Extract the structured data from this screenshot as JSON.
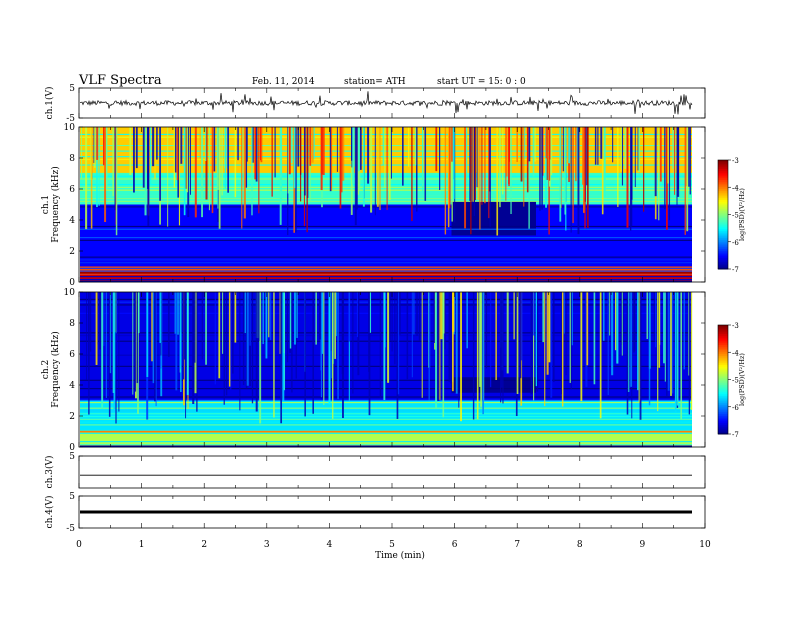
{
  "header": {
    "title": "VLF  Spectra",
    "date": "Feb. 11, 2014",
    "station": "station= ATH",
    "start": "start  UT  =    15: 0  : 0"
  },
  "chart_data": [
    {
      "type": "line",
      "panel": "ch1-waveform",
      "ylabel": "ch.1(V)",
      "ylim": [
        -5,
        5
      ],
      "yticks": [
        5,
        -5
      ],
      "xlim": [
        0,
        10
      ],
      "description_value": "noisy trace near 0 V with spikes"
    },
    {
      "type": "heatmap",
      "panel": "ch1-spectrogram",
      "ylabel_channel": "ch.1",
      "ylabel": "Frequency  (kHz)",
      "ylim": [
        0,
        10
      ],
      "yticks": [
        0,
        2,
        4,
        6,
        8,
        10
      ],
      "xlim": [
        0,
        9.8
      ],
      "colorbar": {
        "label": "log(PSD)(V²/Hz)",
        "range": [
          -7,
          -3
        ],
        "ticks": [
          -3,
          -4,
          -5,
          -6,
          -7
        ]
      },
      "bands_khz": [
        {
          "from": 0,
          "to": 0.5,
          "level": -3.3
        },
        {
          "from": 0.5,
          "to": 1.0,
          "level": -3.8
        },
        {
          "from": 1.0,
          "to": 5.0,
          "level": -6.5
        },
        {
          "from": 5.0,
          "to": 7.0,
          "level": -5.3
        },
        {
          "from": 7.0,
          "to": 10.0,
          "level": -4.3
        }
      ],
      "quiet_window_min": [
        5.95,
        7.3
      ]
    },
    {
      "type": "heatmap",
      "panel": "ch2-spectrogram",
      "ylabel_channel": "ch.2",
      "ylabel": "Frequency  (kHz)",
      "ylim": [
        0,
        10
      ],
      "yticks": [
        0,
        2,
        4,
        6,
        8,
        10
      ],
      "xlim": [
        0,
        9.8
      ],
      "colorbar": {
        "label": "log(PSD)(V²/Hz)",
        "range": [
          -7,
          -3
        ],
        "ticks": [
          -3,
          -4,
          -5,
          -6,
          -7
        ]
      },
      "bands_khz": [
        {
          "from": 0,
          "to": 1.0,
          "level": -4.8
        },
        {
          "from": 1.0,
          "to": 3.0,
          "level": -5.6
        },
        {
          "from": 3.0,
          "to": 10.0,
          "level": -6.6
        }
      ],
      "quiet_window_min": [
        5.95,
        7.3
      ]
    },
    {
      "type": "line",
      "panel": "ch3-waveform",
      "ylabel": "ch.3(V)",
      "ylim": [
        -5,
        5
      ],
      "yticks": [
        5
      ],
      "xlim": [
        0,
        10
      ],
      "level": -1.0
    },
    {
      "type": "line",
      "panel": "ch4-waveform",
      "ylabel": "ch.4(V)",
      "ylim": [
        -5,
        5
      ],
      "yticks": [
        5,
        -5
      ],
      "xlim": [
        0,
        10
      ],
      "level": 0.0
    }
  ],
  "x_axis": {
    "label": "Time  (min)",
    "ticks": [
      0,
      1,
      2,
      3,
      4,
      5,
      6,
      7,
      8,
      9,
      10
    ]
  }
}
